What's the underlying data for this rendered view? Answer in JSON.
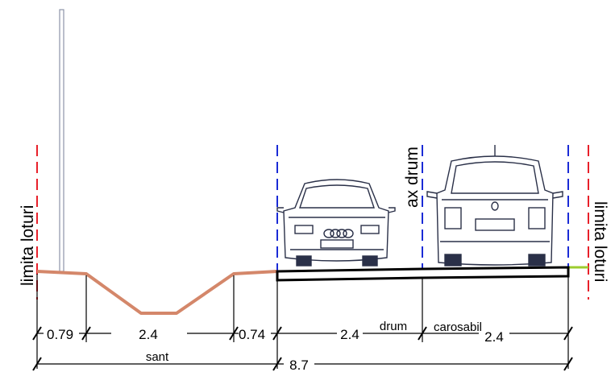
{
  "labels": {
    "lot_left": "limita loturi",
    "lot_right": "limita loturi",
    "road_axis": "ax drum",
    "ditch": "sant",
    "road_word": "drum",
    "carriageway_word": "carosabil"
  },
  "dimensions": {
    "d1": "0.79",
    "d2": "2.4",
    "d3": "0.74",
    "d4": "2.4",
    "d5": "2.4",
    "total": "8.7"
  },
  "colors": {
    "lot_limit": "#e8202a",
    "road_edge": "#1a2bd6",
    "ditch_profile": "#d4876a",
    "verge_right": "#9ccc2e",
    "pole": "#8c93a8"
  }
}
